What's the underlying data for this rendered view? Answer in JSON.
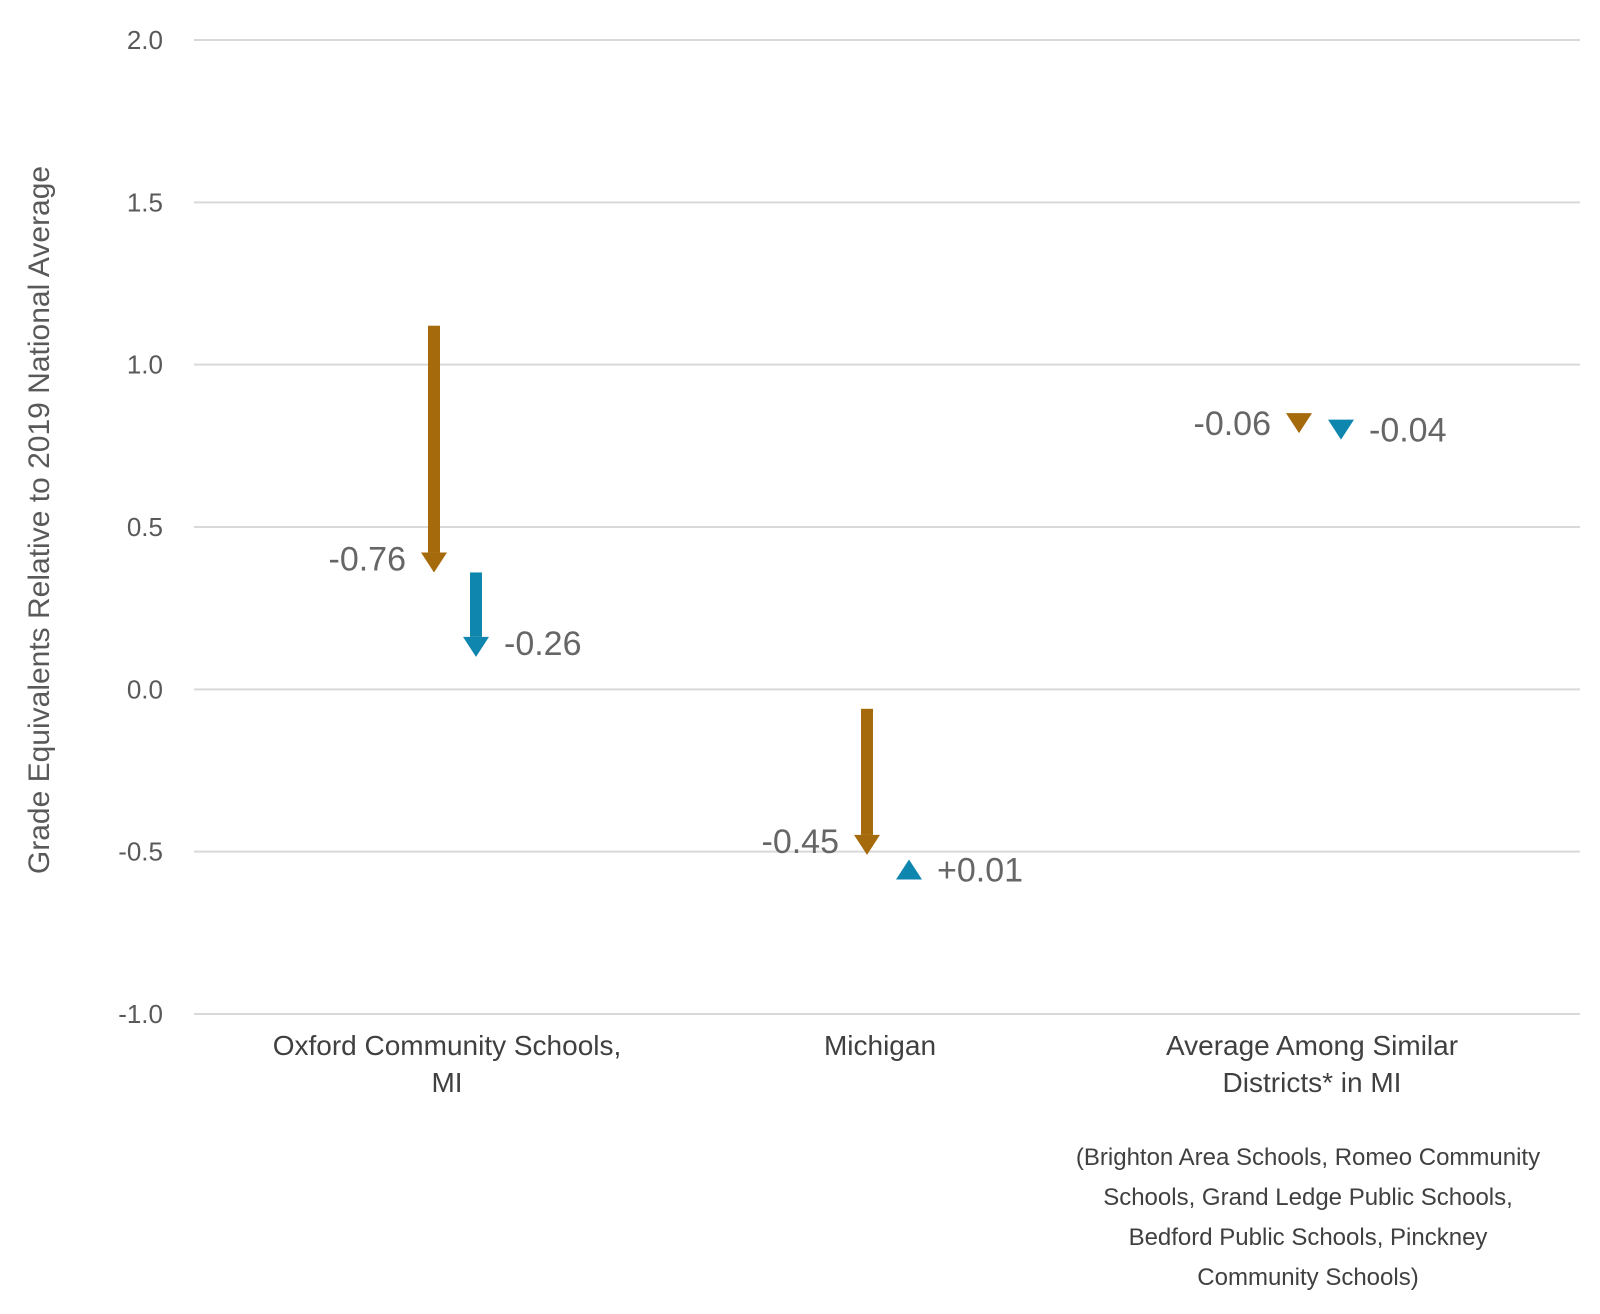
{
  "chart_data": {
    "type": "arrow",
    "ylabel": "Grade Equivalents Relative to 2019 National Average",
    "xlabel": "",
    "ylim": [
      -1.0,
      2.0
    ],
    "yticks": [
      "2.0",
      "1.5",
      "1.0",
      "0.5",
      "0.0",
      "-0.5",
      "-1.0"
    ],
    "ytick_values": [
      2.0,
      1.5,
      1.0,
      0.5,
      0.0,
      -0.5,
      -1.0
    ],
    "grid": true,
    "categories": [
      [
        "Oxford Community Schools,",
        "MI"
      ],
      [
        "Michigan"
      ],
      [
        "Average Among Similar",
        "Districts* in MI"
      ]
    ],
    "footnote": [
      "(Brighton Area Schools, Romeo Community",
      "Schools, Grand Ledge Public Schools,",
      "Bedford Public Schools, Pinckney",
      "Community Schools)"
    ],
    "series": [
      {
        "color": "#a56a0c",
        "changes": [
          {
            "from": 1.12,
            "to": 0.36,
            "label": "-0.76"
          },
          {
            "from": -0.06,
            "to": -0.51,
            "label": "-0.45"
          },
          {
            "from": 0.85,
            "to": 0.79,
            "label": "-0.06"
          }
        ]
      },
      {
        "color": "#0f86ad",
        "changes": [
          {
            "from": 0.36,
            "to": 0.1,
            "label": "-0.26"
          },
          {
            "from": -0.56,
            "to": -0.55,
            "label": "+0.01"
          },
          {
            "from": 0.82,
            "to": 0.78,
            "label": "-0.04"
          }
        ]
      }
    ]
  }
}
